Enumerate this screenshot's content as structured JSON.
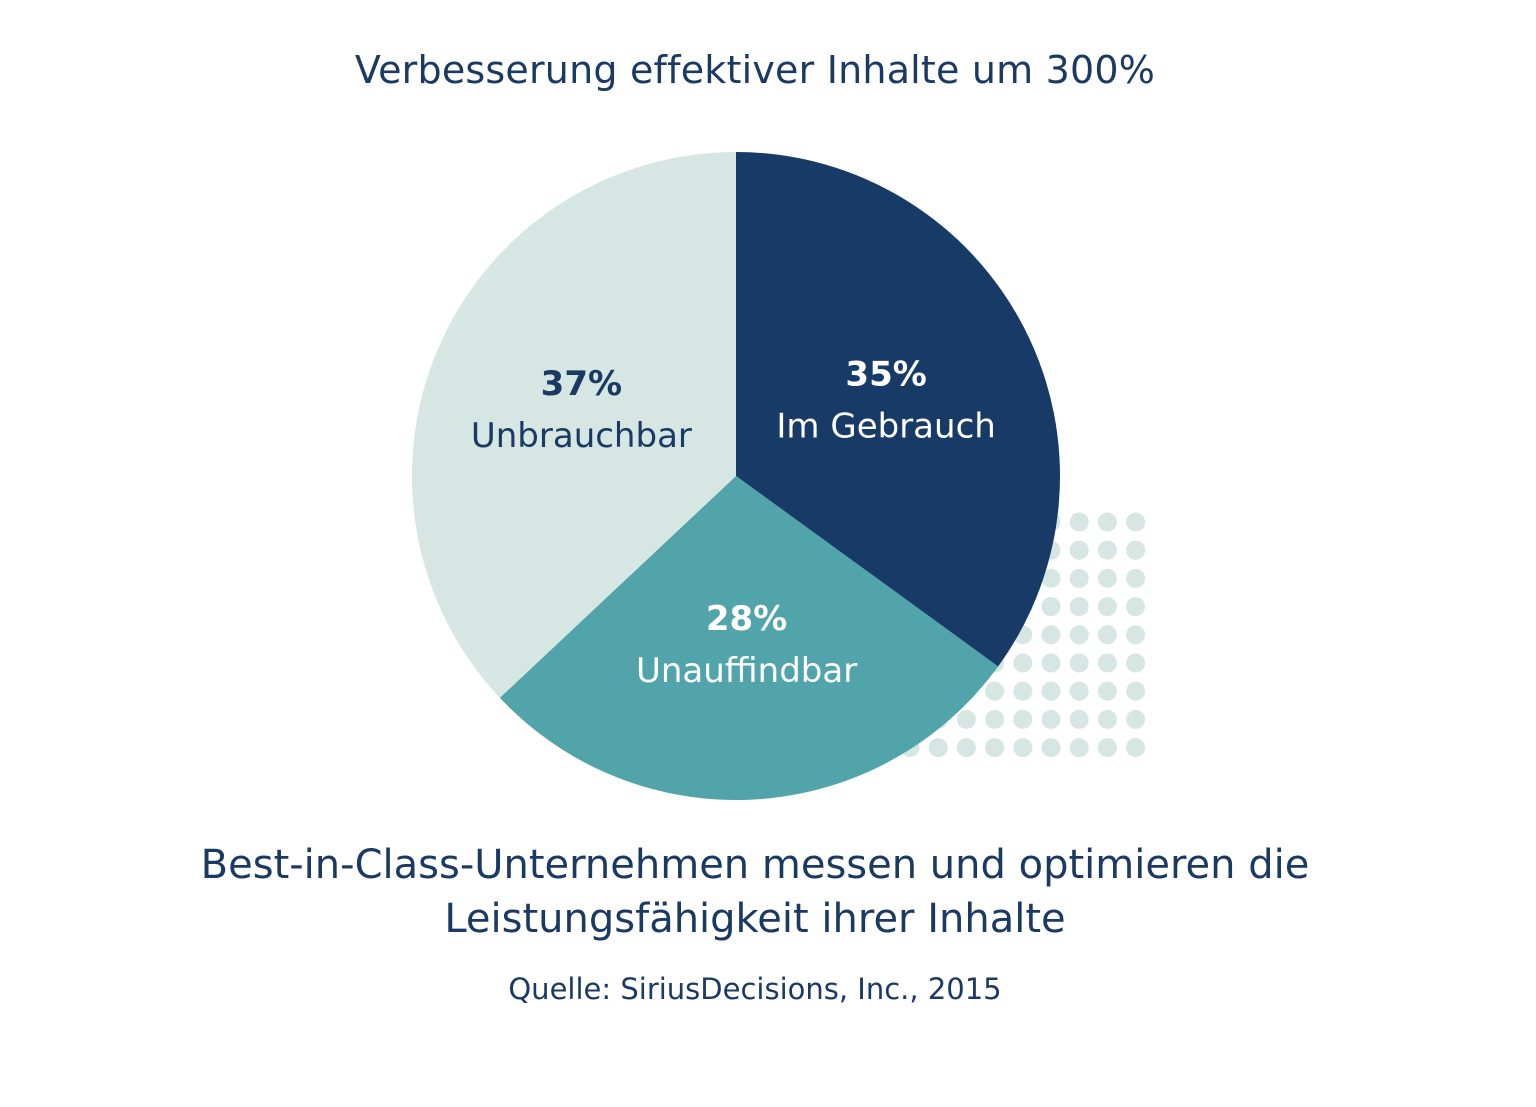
{
  "title": "Verbesserung effektiver Inhalte um 300%",
  "subtitle_lines": [
    "Best-in-Class-Unternehmen messen und optimieren die",
    "Leistungsfähigkeit ihrer Inhalte"
  ],
  "source": "Quelle: SiriusDecisions, Inc., 2015",
  "colors": {
    "text": "#1a3a64",
    "dots": "#d6e6e3"
  },
  "chart_data": {
    "type": "pie",
    "start_angle_deg": 0,
    "direction": "clockwise",
    "slices": [
      {
        "label": "Im Gebrauch",
        "value": 35,
        "value_label": "35%",
        "color": "#173a67",
        "text_color": "#ffffff"
      },
      {
        "label": "Unauffindbar",
        "value": 28,
        "value_label": "28%",
        "color": "#50a4aa",
        "text_color": "#ffffff"
      },
      {
        "label": "Unbrauchbar",
        "value": 37,
        "value_label": "37%",
        "color": "#d6e6e3",
        "text_color": "#1a3a64"
      }
    ]
  }
}
